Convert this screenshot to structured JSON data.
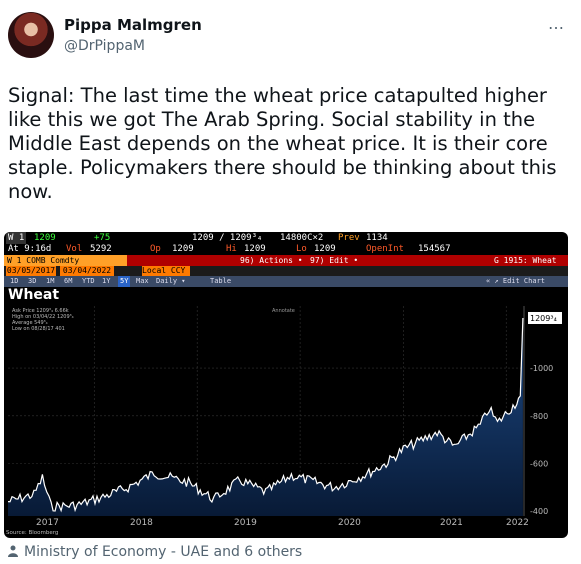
{
  "user": {
    "name": "Pippa Malmgren",
    "handle": "@DrPippaM"
  },
  "more_icon": "…",
  "tweet_text": "Signal: The last time the wheat price catapulted higher like this we got The Arab Spring. Social stability in the Middle East depends on the wheat price. It is their core staple. Policymakers there should be thinking about this now.",
  "terminal": {
    "row1": [
      "W 1",
      "1209",
      "+75",
      "1209 / 1209³₄",
      "14800C×2",
      "Prev",
      "1134"
    ],
    "row2": [
      "At 9:16d",
      "Vol",
      "5292",
      "Op",
      "1209",
      "Hi",
      "1209",
      "Lo",
      "1209",
      "OpenInt",
      "154567"
    ],
    "row3": [
      "W 1 COMB Comdty",
      "96) Actions •",
      "97) Edit •",
      "G 1915: Wheat"
    ],
    "row4": [
      "03/05/2017",
      "03/04/2022",
      "Local CCY"
    ],
    "row5": [
      "1D",
      "3D",
      "1M",
      "6M",
      "YTD",
      "1Y",
      "5Y",
      "Max",
      "Daily ▾",
      "Table",
      "« ↗ Edit Chart"
    ],
    "chart_title": "Wheat",
    "legend": [
      "Ask Price   1209³₄  6.66k",
      "High on 03/04/22  1209³₄",
      "Average  549³₄",
      "Low on 08/28/17  401"
    ],
    "annotate": "Annotate",
    "source": "Source: Bloomberg"
  },
  "chart_data": {
    "type": "area",
    "title": "Wheat",
    "x_ticks": [
      "2017",
      "2018",
      "2019",
      "2020",
      "2021",
      "2022"
    ],
    "y_ticks": [
      400,
      600,
      800,
      1000
    ],
    "ylim": [
      380,
      1260
    ],
    "last_label": "1209³₄",
    "series": [
      {
        "values": [
          {
            "x": "2017-03",
            "y": 440
          },
          {
            "x": "2017-06",
            "y": 470
          },
          {
            "x": "2017-07",
            "y": 540
          },
          {
            "x": "2017-08",
            "y": 420
          },
          {
            "x": "2017-11",
            "y": 425
          },
          {
            "x": "2018-02",
            "y": 460
          },
          {
            "x": "2018-05",
            "y": 500
          },
          {
            "x": "2018-08",
            "y": 560
          },
          {
            "x": "2018-12",
            "y": 520
          },
          {
            "x": "2019-03",
            "y": 450
          },
          {
            "x": "2019-06",
            "y": 530
          },
          {
            "x": "2019-09",
            "y": 480
          },
          {
            "x": "2019-12",
            "y": 550
          },
          {
            "x": "2020-03",
            "y": 520
          },
          {
            "x": "2020-05",
            "y": 500
          },
          {
            "x": "2020-09",
            "y": 560
          },
          {
            "x": "2020-11",
            "y": 600
          },
          {
            "x": "2021-01",
            "y": 660
          },
          {
            "x": "2021-05",
            "y": 730
          },
          {
            "x": "2021-07",
            "y": 670
          },
          {
            "x": "2021-10",
            "y": 760
          },
          {
            "x": "2021-11",
            "y": 830
          },
          {
            "x": "2021-12",
            "y": 770
          },
          {
            "x": "2022-02",
            "y": 850
          },
          {
            "x": "2022-02-20",
            "y": 880
          },
          {
            "x": "2022-03",
            "y": 1209.75
          }
        ]
      }
    ]
  },
  "footer": "Ministry of Economy - UAE and 6 others"
}
